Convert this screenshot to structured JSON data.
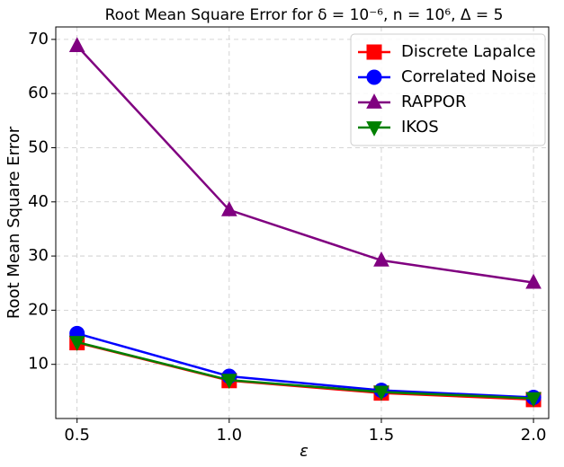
{
  "chart_data": {
    "type": "line",
    "title": "Root Mean Square Error for δ = 10⁻⁶, n = 10⁶, Δ = 5",
    "x_label": "ε",
    "y_label": "Root Mean Square Error",
    "x": [
      0.5,
      1.0,
      1.5,
      2.0
    ],
    "series": [
      {
        "name": "Discrete Lapalce",
        "color": "#ff0000",
        "line_color": "#ff0000",
        "marker": "square",
        "values": [
          14.0,
          7.0,
          4.7,
          3.5
        ]
      },
      {
        "name": "Correlated Noise",
        "color": "#0000ff",
        "line_color": "#0000ff",
        "marker": "circle",
        "values": [
          15.7,
          7.8,
          5.2,
          3.9
        ]
      },
      {
        "name": "RAPPOR",
        "color": "#800080",
        "line_color": "#800080",
        "marker": "triangle-up",
        "values": [
          68.8,
          38.5,
          29.2,
          25.1
        ]
      },
      {
        "name": "IKOS",
        "color": "#008000",
        "line_color": "#008000",
        "marker": "triangle-down",
        "values": [
          14.1,
          7.1,
          4.9,
          3.7
        ]
      }
    ],
    "xlim": [
      0.43,
      2.05
    ],
    "ylim": [
      0,
      72.3
    ],
    "xticks": [
      0.5,
      {
        "value": 1,
        "label": "1.0"
      },
      1.5,
      {
        "value": 2,
        "label": "2.0"
      }
    ],
    "yticks": [
      10,
      20,
      30,
      40,
      50,
      60,
      70
    ],
    "grid": true,
    "legend": "upper-right"
  }
}
